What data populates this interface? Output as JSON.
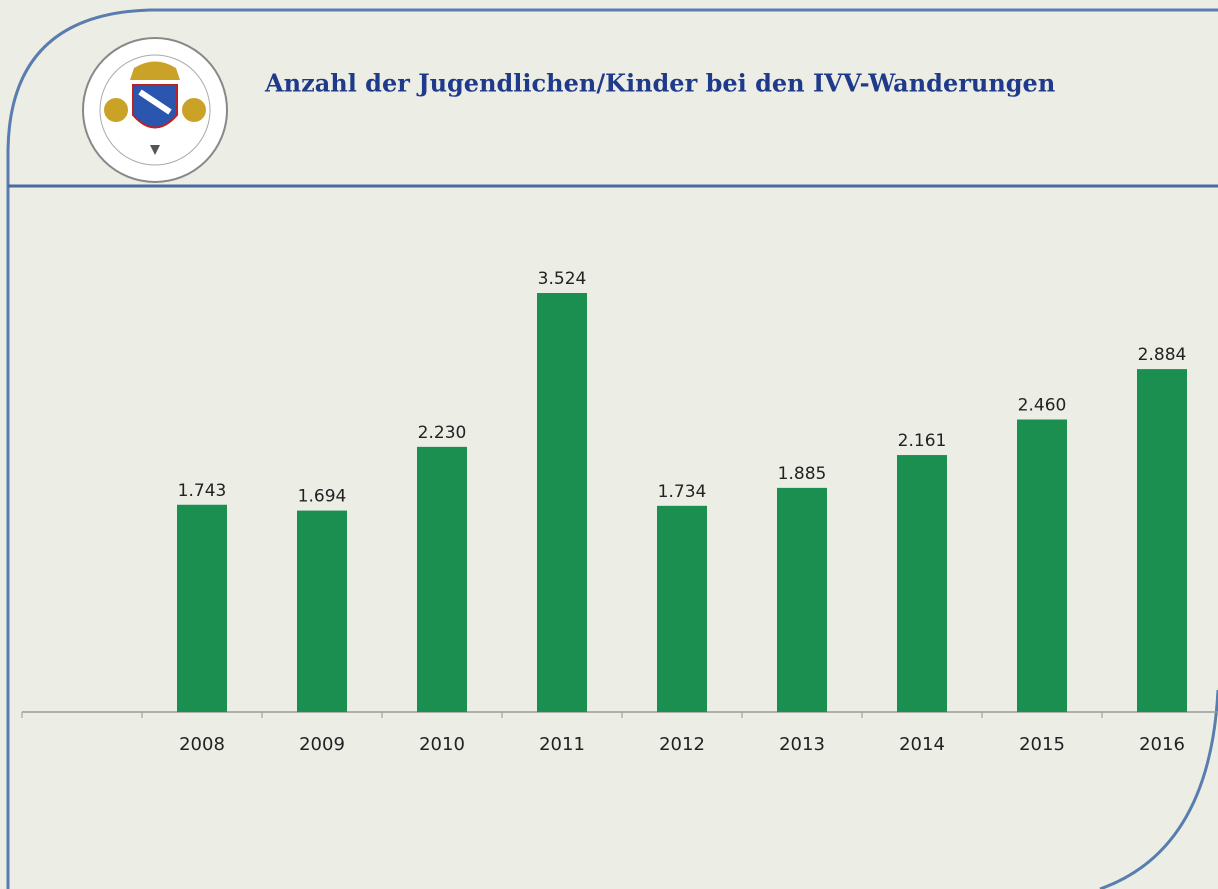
{
  "chart_data": {
    "type": "bar",
    "title": "Anzahl der Jugendlichen/Kinder bei den IVV-Wanderungen",
    "categories": [
      "2008",
      "2009",
      "2010",
      "2011",
      "2012",
      "2013",
      "2014",
      "2015",
      "2016"
    ],
    "values": [
      1743,
      1694,
      2230,
      3524,
      1734,
      1885,
      2161,
      2460,
      2884
    ],
    "value_labels": [
      "1.743",
      "1.694",
      "2.230",
      "3.524",
      "1.734",
      "1.885",
      "2.161",
      "2.460",
      "2.884"
    ],
    "color": "#1a8f50"
  }
}
